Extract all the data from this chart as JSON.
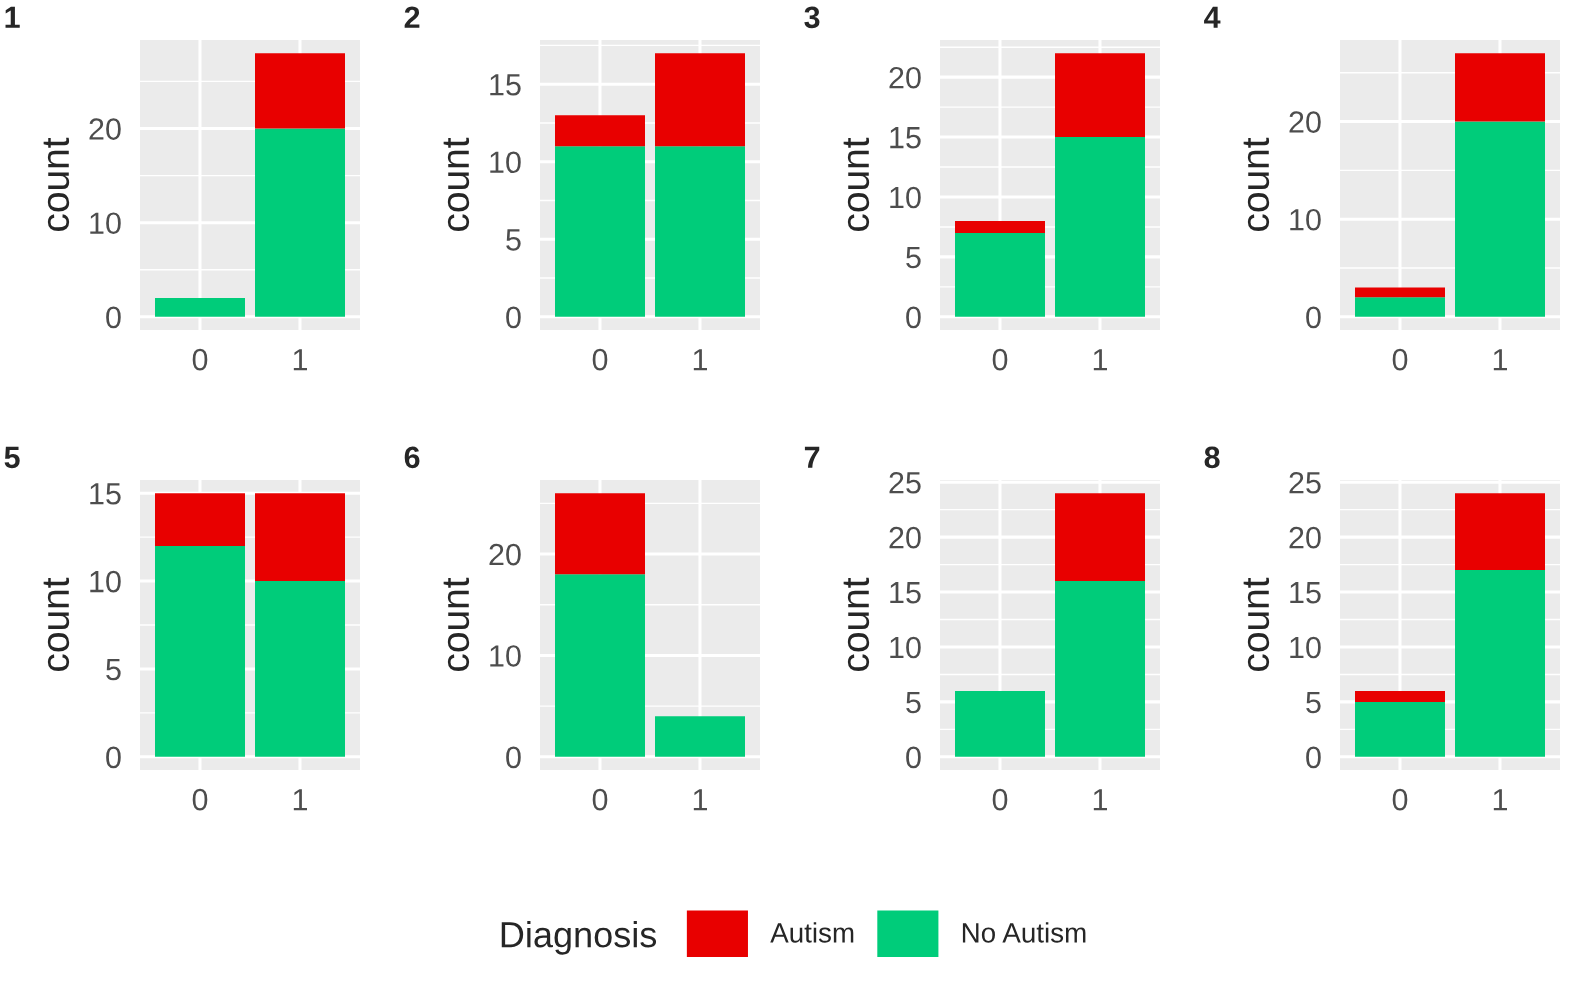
{
  "chart_data": [
    {
      "type": "bar",
      "title": "1",
      "ylabel": "count",
      "categories": [
        "0",
        "1"
      ],
      "stacked": true,
      "grid": true,
      "ylim": [
        -1.4,
        29.4
      ],
      "yticks": [
        0,
        10,
        20
      ],
      "legend": "bottom",
      "legend_title": "Diagnosis",
      "series": [
        {
          "name": "No Autism",
          "color": "#00cc7a",
          "values": [
            2,
            20
          ]
        },
        {
          "name": "Autism",
          "color": "#e80000",
          "values": [
            0,
            8
          ]
        }
      ]
    },
    {
      "type": "bar",
      "title": "2",
      "ylabel": "count",
      "categories": [
        "0",
        "1"
      ],
      "stacked": true,
      "grid": true,
      "ylim": [
        -0.85,
        17.85
      ],
      "yticks": [
        0,
        5,
        10,
        15
      ],
      "series": [
        {
          "color": "#00cc7a",
          "values": [
            11,
            11
          ]
        },
        {
          "color": "#e80000",
          "values": [
            2,
            6
          ]
        }
      ]
    },
    {
      "type": "bar",
      "title": "3",
      "ylabel": "count",
      "categories": [
        "0",
        "1"
      ],
      "stacked": true,
      "grid": true,
      "ylim": [
        -1.1,
        23.1
      ],
      "yticks": [
        0,
        5,
        10,
        15,
        20
      ],
      "series": [
        {
          "color": "#00cc7a",
          "values": [
            7,
            15
          ]
        },
        {
          "color": "#e80000",
          "values": [
            1,
            7
          ]
        }
      ]
    },
    {
      "type": "bar",
      "title": "4",
      "ylabel": "count",
      "categories": [
        "0",
        "1"
      ],
      "stacked": true,
      "grid": true,
      "ylim": [
        -1.35,
        28.35
      ],
      "yticks": [
        0,
        10,
        20
      ],
      "series": [
        {
          "color": "#00cc7a",
          "values": [
            2,
            20
          ]
        },
        {
          "color": "#e80000",
          "values": [
            1,
            7
          ]
        }
      ]
    },
    {
      "type": "bar",
      "title": "5",
      "ylabel": "count",
      "categories": [
        "0",
        "1"
      ],
      "stacked": true,
      "grid": true,
      "ylim": [
        -0.75,
        15.75
      ],
      "yticks": [
        0,
        5,
        10,
        15
      ],
      "series": [
        {
          "color": "#00cc7a",
          "values": [
            12,
            10
          ]
        },
        {
          "color": "#e80000",
          "values": [
            3,
            5
          ]
        }
      ]
    },
    {
      "type": "bar",
      "title": "6",
      "ylabel": "count",
      "categories": [
        "0",
        "1"
      ],
      "stacked": true,
      "grid": true,
      "ylim": [
        -1.3,
        27.3
      ],
      "yticks": [
        0,
        10,
        20
      ],
      "series": [
        {
          "color": "#00cc7a",
          "values": [
            18,
            4
          ]
        },
        {
          "color": "#e80000",
          "values": [
            8,
            0
          ]
        }
      ]
    },
    {
      "type": "bar",
      "title": "7",
      "ylabel": "count",
      "categories": [
        "0",
        "1"
      ],
      "stacked": true,
      "grid": true,
      "ylim": [
        -1.2,
        25.2
      ],
      "yticks": [
        0,
        5,
        10,
        15,
        20,
        25
      ],
      "series": [
        {
          "color": "#00cc7a",
          "values": [
            6,
            16
          ]
        },
        {
          "color": "#e80000",
          "values": [
            0,
            8
          ]
        }
      ]
    },
    {
      "type": "bar",
      "title": "8",
      "ylabel": "count",
      "categories": [
        "0",
        "1"
      ],
      "stacked": true,
      "grid": true,
      "ylim": [
        -1.2,
        25.2
      ],
      "yticks": [
        0,
        5,
        10,
        15,
        20,
        25
      ],
      "series": [
        {
          "color": "#00cc7a",
          "values": [
            5,
            17
          ]
        },
        {
          "color": "#e80000",
          "values": [
            1,
            7
          ]
        }
      ]
    }
  ]
}
